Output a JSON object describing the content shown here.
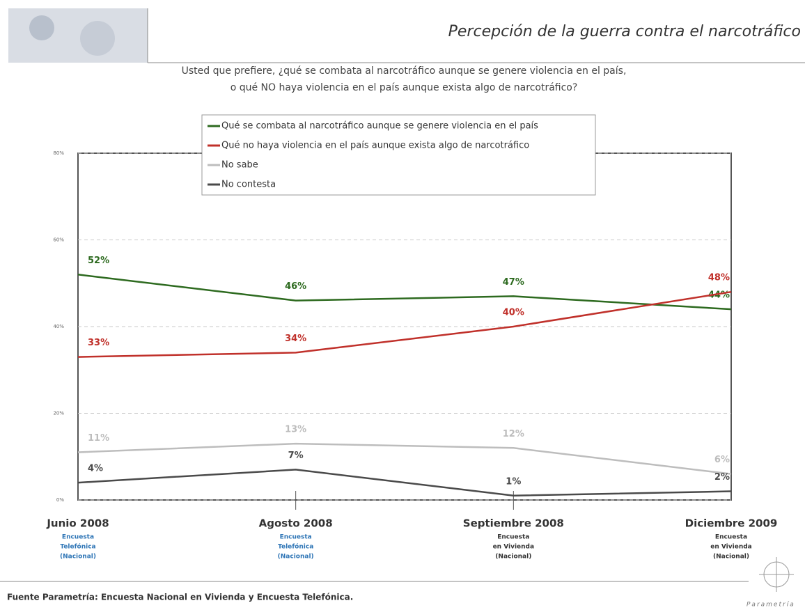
{
  "chart_data": {
    "type": "line",
    "title": "Percepción de la guerra contra el narcotráfico",
    "subtitle": [
      "Usted que prefiere, ¿qué se combata al narcotráfico aunque se genere violencia en el país,",
      "o qué NO haya violencia en el país aunque exista algo de narcotráfico?"
    ],
    "categories": [
      "Junio 2008",
      "Agosto 2008",
      "Septiembre 2008",
      "Diciembre 2009"
    ],
    "category_notes": [
      [
        "Encuesta",
        "Telefónica",
        "(Nacional)"
      ],
      [
        "Encuesta",
        "Telefónica",
        "(Nacional)"
      ],
      [
        "Encuesta",
        "en Vivienda",
        "(Nacional)"
      ],
      [
        "Encuesta",
        "en Vivienda",
        "(Nacional)"
      ]
    ],
    "category_note_colors": [
      "#2e75b6",
      "#2e75b6",
      "#333333",
      "#333333"
    ],
    "series": [
      {
        "name": "Qué se combata al narcotráfico aunque se genere violencia en el país",
        "color": "#2d6a1f",
        "values": [
          52,
          46,
          47,
          44
        ],
        "value_labels": [
          "52%",
          "46%",
          "47%",
          "44%"
        ]
      },
      {
        "name": "Qué no haya violencia en el país aunque exista algo de narcotráfico",
        "color": "#c0302a",
        "values": [
          33,
          34,
          40,
          48
        ],
        "value_labels": [
          "33%",
          "34%",
          "40%",
          "48%"
        ]
      },
      {
        "name": "No sabe",
        "color": "#bdbdbd",
        "values": [
          11,
          13,
          12,
          6
        ],
        "value_labels": [
          "11%",
          "13%",
          "12%",
          "6%"
        ]
      },
      {
        "name": "No contesta",
        "color": "#4a4a4a",
        "values": [
          4,
          7,
          1,
          2
        ],
        "value_labels": [
          "4%",
          "7%",
          "1%",
          "2%"
        ]
      }
    ],
    "ylim": [
      0,
      80
    ],
    "yticks": [
      {
        "value": 0,
        "label": "0%"
      },
      {
        "value": 20,
        "label": "20%"
      },
      {
        "value": 40,
        "label": "40%"
      },
      {
        "value": 60,
        "label": "60%"
      },
      {
        "value": 80,
        "label": "80%"
      }
    ],
    "grid": true,
    "source": "Fuente Parametría: Encuesta Nacional en Vivienda y Encuesta Telefónica.",
    "logo": "Parametría"
  }
}
